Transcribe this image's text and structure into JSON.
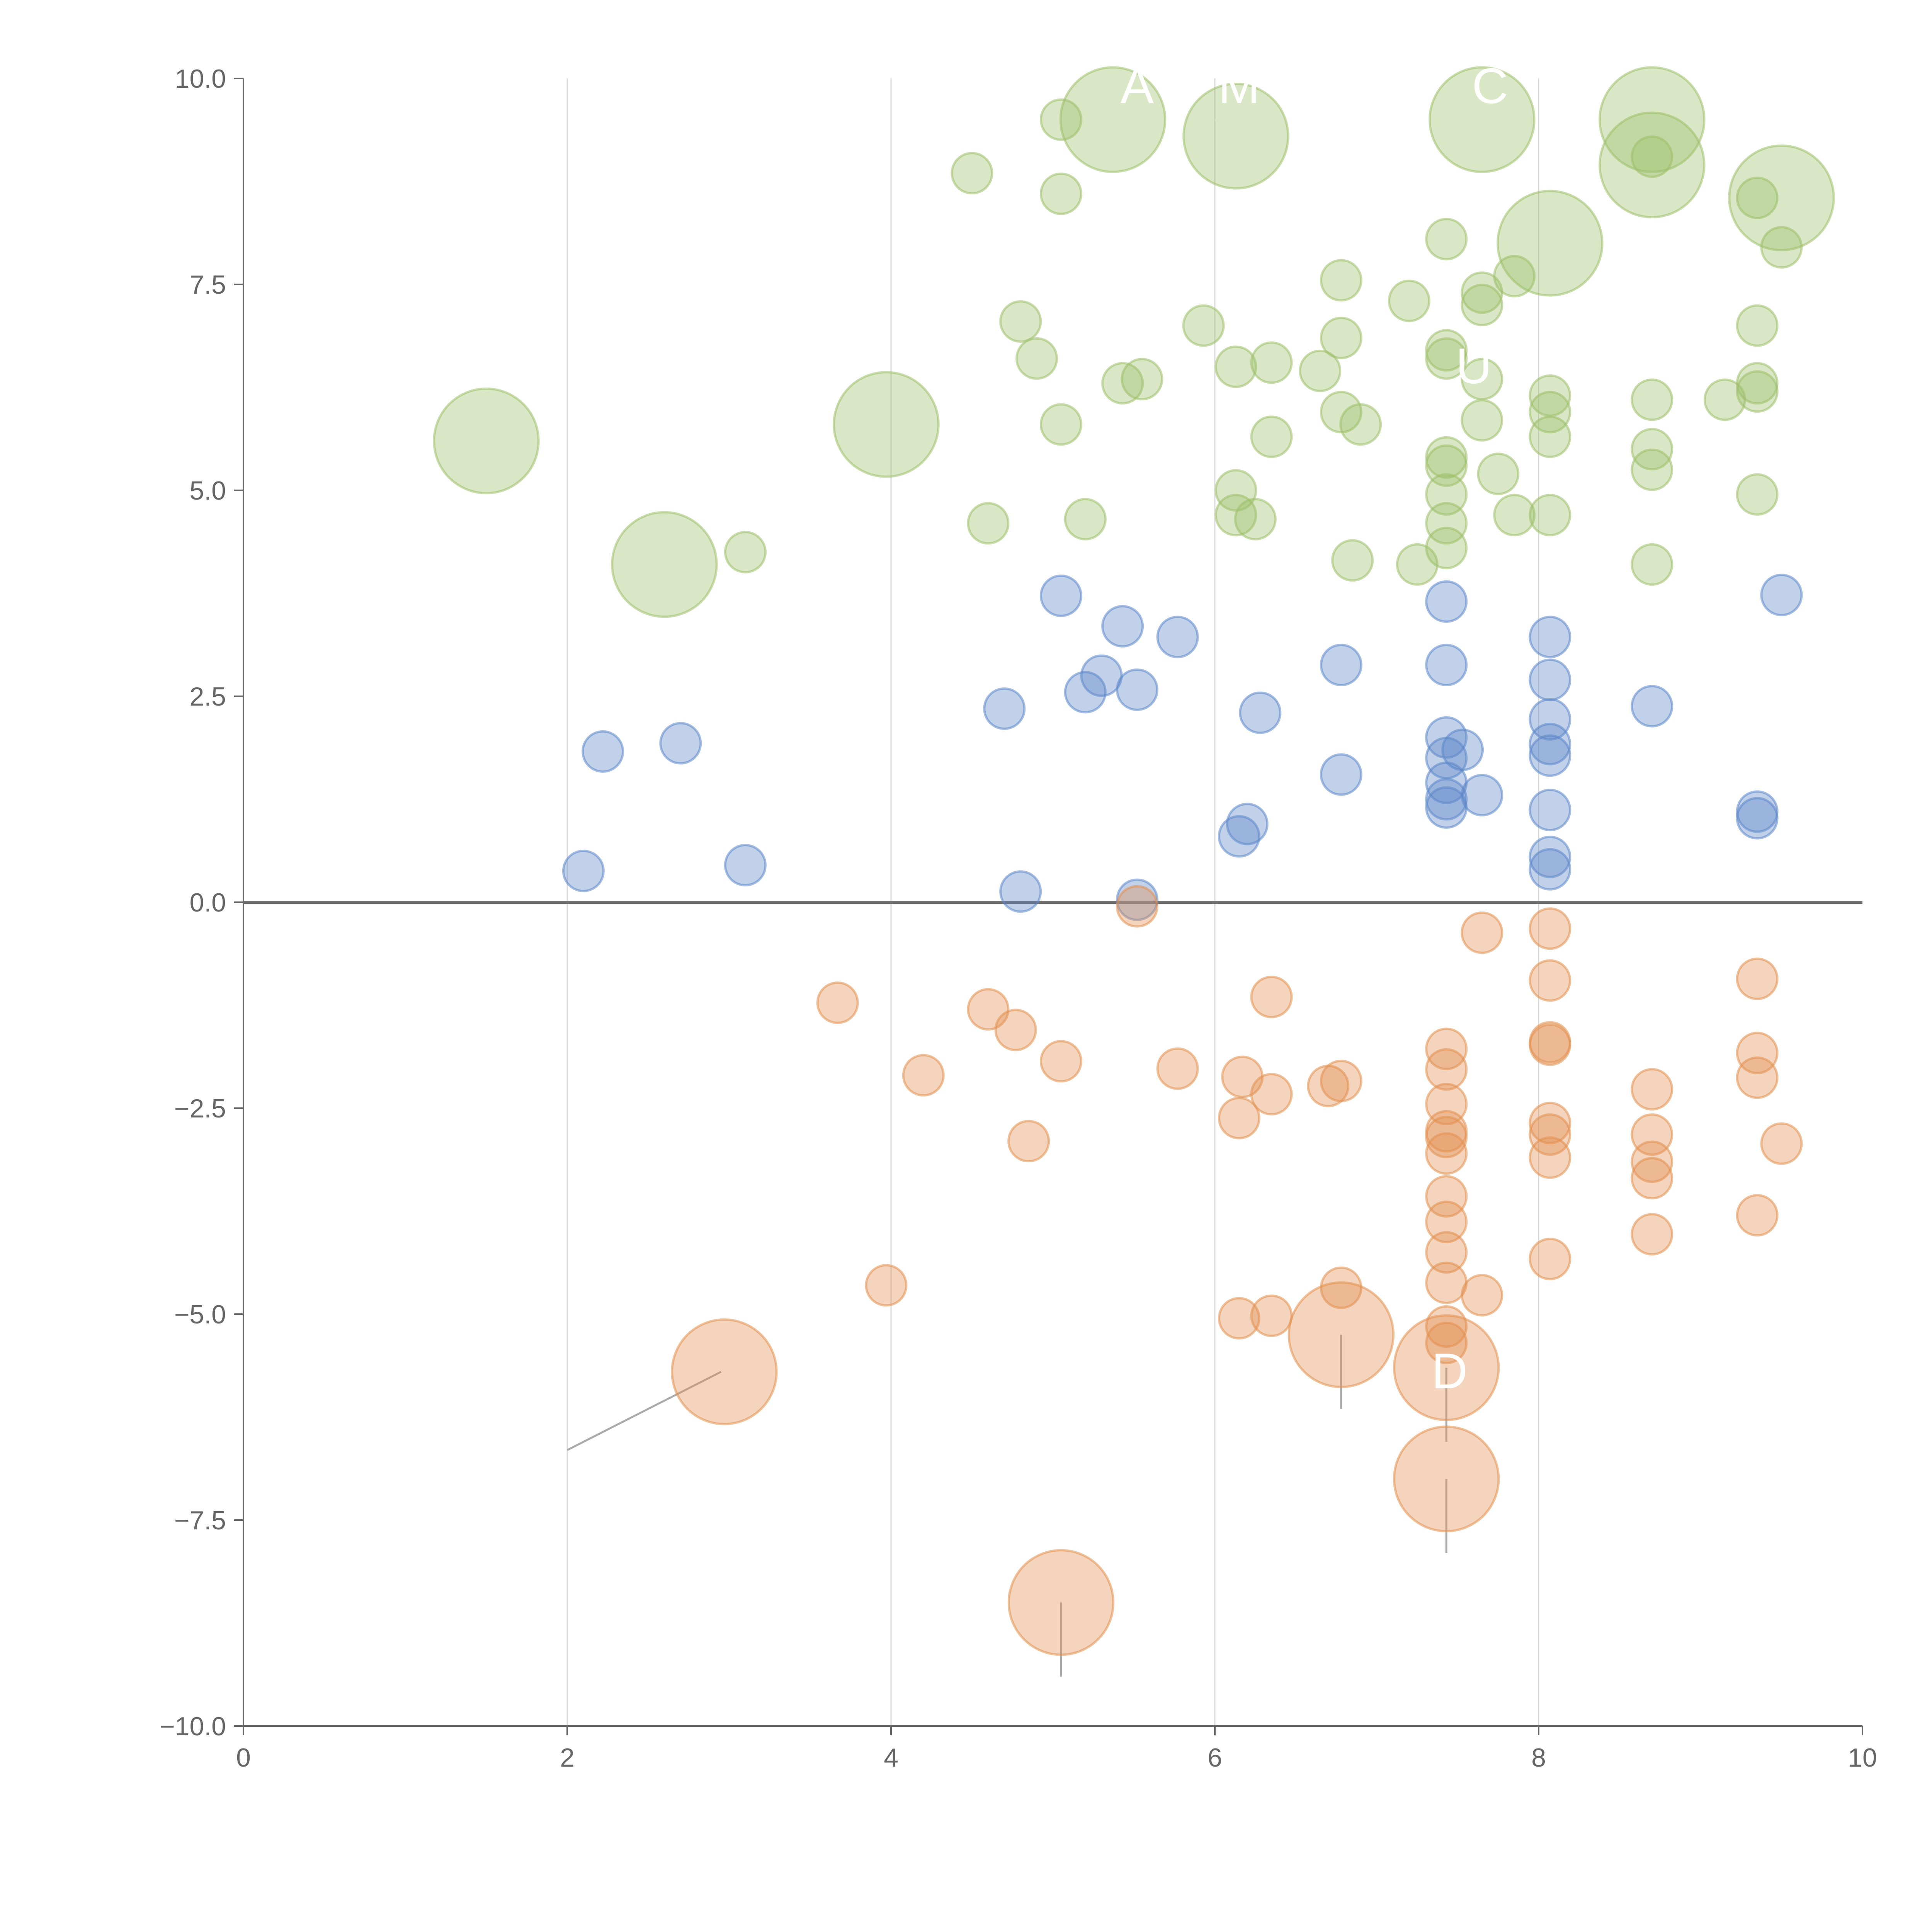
{
  "chart_data": {
    "type": "scatter",
    "variant": "bubble",
    "title": "",
    "xlabel": "",
    "ylabel": "",
    "xlim": [
      0,
      10
    ],
    "ylim": [
      -10,
      10
    ],
    "x_ticks": [
      0,
      2,
      4,
      6,
      8,
      10
    ],
    "x_tick_labels": [
      "0",
      "2",
      "4",
      "6",
      "8",
      "10"
    ],
    "y_ticks": [
      10,
      7.5,
      5,
      2.5,
      0,
      -2.5,
      -5,
      -7.5,
      -10
    ],
    "y_tick_labels": [
      "10.0",
      "7.5",
      "5.0",
      "2.5",
      "0.0",
      "−2.5",
      "−5.0",
      "−7.5",
      "−10.0"
    ],
    "vertical_gridlines_at": [
      2,
      4,
      6,
      8
    ],
    "reference_line_y": 0,
    "colors": {
      "green": "#9cc069",
      "blue": "#5b86c8",
      "orange": "#e18f4e",
      "axis": "#666666",
      "grid": "#d9d9d9",
      "zero_line": "#707070",
      "leader": "#aaaaaa"
    },
    "series": [
      {
        "name": "green",
        "color": "#9cc069",
        "points": [
          [
            1.5,
            5.6,
            2.6
          ],
          [
            2.6,
            4.1,
            2.6
          ],
          [
            3.1,
            4.25,
            1
          ],
          [
            3.97,
            5.8,
            2.6
          ],
          [
            4.5,
            8.85,
            1
          ],
          [
            4.6,
            4.6,
            1
          ],
          [
            4.8,
            7.05,
            1
          ],
          [
            4.9,
            6.6,
            1
          ],
          [
            5.05,
            9.5,
            1
          ],
          [
            5.05,
            8.6,
            1
          ],
          [
            5.05,
            5.8,
            1
          ],
          [
            5.2,
            4.65,
            1
          ],
          [
            5.37,
            9.5,
            2.6
          ],
          [
            5.43,
            6.3,
            1
          ],
          [
            5.55,
            6.35,
            1
          ],
          [
            5.93,
            7.0,
            1
          ],
          [
            6.13,
            9.3,
            2.6
          ],
          [
            6.13,
            6.5,
            1
          ],
          [
            6.13,
            5.0,
            1
          ],
          [
            6.13,
            4.7,
            1
          ],
          [
            6.25,
            4.65,
            1
          ],
          [
            6.35,
            6.55,
            1
          ],
          [
            6.35,
            5.65,
            1
          ],
          [
            6.65,
            6.45,
            1
          ],
          [
            6.78,
            7.55,
            1
          ],
          [
            6.78,
            6.85,
            1
          ],
          [
            6.78,
            5.95,
            1
          ],
          [
            6.9,
            5.8,
            1
          ],
          [
            6.85,
            4.15,
            1
          ],
          [
            7.2,
            7.3,
            1
          ],
          [
            7.25,
            4.1,
            1
          ],
          [
            7.43,
            8.05,
            1
          ],
          [
            7.43,
            6.7,
            1
          ],
          [
            7.43,
            6.6,
            1
          ],
          [
            7.43,
            5.4,
            1
          ],
          [
            7.43,
            5.3,
            1
          ],
          [
            7.43,
            4.95,
            1
          ],
          [
            7.43,
            4.6,
            1
          ],
          [
            7.43,
            4.3,
            1
          ],
          [
            7.65,
            9.5,
            2.6
          ],
          [
            7.65,
            7.4,
            1
          ],
          [
            7.65,
            7.25,
            1
          ],
          [
            7.65,
            6.35,
            1
          ],
          [
            7.65,
            5.85,
            1
          ],
          [
            7.75,
            5.2,
            1
          ],
          [
            7.85,
            7.6,
            1
          ],
          [
            7.85,
            4.7,
            1
          ],
          [
            8.07,
            8.0,
            2.6
          ],
          [
            8.07,
            6.15,
            1
          ],
          [
            8.07,
            5.95,
            1
          ],
          [
            8.07,
            5.65,
            1
          ],
          [
            8.07,
            4.7,
            1
          ],
          [
            8.7,
            9.5,
            2.6
          ],
          [
            8.7,
            8.95,
            2.6
          ],
          [
            8.7,
            9.05,
            1
          ],
          [
            8.7,
            6.1,
            1
          ],
          [
            8.7,
            5.5,
            1
          ],
          [
            8.7,
            5.25,
            1
          ],
          [
            8.7,
            4.1,
            1
          ],
          [
            9.15,
            6.1,
            1
          ],
          [
            9.35,
            8.55,
            1
          ],
          [
            9.35,
            7.0,
            1
          ],
          [
            9.35,
            6.3,
            1
          ],
          [
            9.35,
            6.2,
            1
          ],
          [
            9.35,
            4.95,
            1
          ],
          [
            9.5,
            8.55,
            2.6
          ],
          [
            9.5,
            7.95,
            1
          ]
        ]
      },
      {
        "name": "blue",
        "color": "#5b86c8",
        "points": [
          [
            2.1,
            0.38,
            1
          ],
          [
            2.22,
            1.83,
            1
          ],
          [
            2.7,
            1.93,
            1
          ],
          [
            3.1,
            0.45,
            1
          ],
          [
            4.7,
            2.35,
            1
          ],
          [
            4.8,
            0.13,
            1
          ],
          [
            5.05,
            3.72,
            1
          ],
          [
            5.2,
            2.55,
            1
          ],
          [
            5.3,
            2.75,
            1
          ],
          [
            5.43,
            3.35,
            1
          ],
          [
            5.52,
            2.58,
            1
          ],
          [
            5.52,
            0.03,
            1
          ],
          [
            5.77,
            3.22,
            1
          ],
          [
            6.15,
            0.8,
            1
          ],
          [
            6.2,
            0.95,
            1
          ],
          [
            6.28,
            2.3,
            1
          ],
          [
            6.78,
            2.88,
            1
          ],
          [
            6.78,
            1.55,
            1
          ],
          [
            7.43,
            3.65,
            1
          ],
          [
            7.43,
            2.88,
            1
          ],
          [
            7.43,
            2.0,
            1
          ],
          [
            7.43,
            1.75,
            1
          ],
          [
            7.43,
            1.45,
            1
          ],
          [
            7.43,
            1.25,
            1
          ],
          [
            7.43,
            1.15,
            1
          ],
          [
            7.53,
            1.85,
            1
          ],
          [
            7.65,
            1.3,
            1
          ],
          [
            8.07,
            3.22,
            1
          ],
          [
            8.07,
            2.7,
            1
          ],
          [
            8.07,
            2.22,
            1
          ],
          [
            8.07,
            1.92,
            1
          ],
          [
            8.07,
            1.78,
            1
          ],
          [
            8.07,
            1.12,
            1
          ],
          [
            8.07,
            0.55,
            1
          ],
          [
            8.07,
            0.4,
            1
          ],
          [
            8.7,
            2.38,
            1
          ],
          [
            9.35,
            1.1,
            1
          ],
          [
            9.35,
            1.02,
            1
          ],
          [
            9.5,
            3.73,
            1
          ]
        ]
      },
      {
        "name": "orange",
        "color": "#e18f4e",
        "points": [
          [
            2.97,
            -5.7,
            2.6
          ],
          [
            3.67,
            -1.22,
            1
          ],
          [
            3.97,
            -4.65,
            1
          ],
          [
            4.2,
            -2.1,
            1
          ],
          [
            4.6,
            -1.3,
            1
          ],
          [
            4.77,
            -1.55,
            1
          ],
          [
            4.85,
            -2.9,
            1
          ],
          [
            5.05,
            -1.93,
            1
          ],
          [
            5.05,
            -8.5,
            2.6
          ],
          [
            5.52,
            -0.05,
            1
          ],
          [
            5.77,
            -2.02,
            1
          ],
          [
            6.15,
            -2.62,
            1
          ],
          [
            6.15,
            -5.05,
            1
          ],
          [
            6.17,
            -2.12,
            1
          ],
          [
            6.35,
            -1.15,
            1
          ],
          [
            6.35,
            -2.33,
            1
          ],
          [
            6.35,
            -5.02,
            1
          ],
          [
            6.7,
            -2.23,
            1
          ],
          [
            6.78,
            -2.17,
            1
          ],
          [
            6.78,
            -4.68,
            1
          ],
          [
            6.78,
            -5.25,
            2.6
          ],
          [
            7.43,
            -1.78,
            1
          ],
          [
            7.43,
            -2.03,
            1
          ],
          [
            7.43,
            -2.45,
            1
          ],
          [
            7.43,
            -2.78,
            1
          ],
          [
            7.43,
            -2.85,
            1
          ],
          [
            7.43,
            -3.05,
            1
          ],
          [
            7.43,
            -3.57,
            1
          ],
          [
            7.43,
            -3.88,
            1
          ],
          [
            7.43,
            -4.25,
            1
          ],
          [
            7.43,
            -4.62,
            1
          ],
          [
            7.43,
            -5.15,
            1
          ],
          [
            7.43,
            -5.35,
            1
          ],
          [
            7.43,
            -5.65,
            2.6
          ],
          [
            7.43,
            -7.0,
            2.6
          ],
          [
            7.65,
            -0.37,
            1
          ],
          [
            7.65,
            -4.77,
            1
          ],
          [
            8.07,
            -0.32,
            1
          ],
          [
            8.07,
            -0.95,
            1
          ],
          [
            8.07,
            -1.7,
            1
          ],
          [
            8.07,
            -1.73,
            1
          ],
          [
            8.07,
            -2.68,
            1
          ],
          [
            8.07,
            -2.82,
            1
          ],
          [
            8.07,
            -3.1,
            1
          ],
          [
            8.07,
            -4.33,
            1
          ],
          [
            8.7,
            -2.27,
            1
          ],
          [
            8.7,
            -2.82,
            1
          ],
          [
            8.7,
            -3.15,
            1
          ],
          [
            8.7,
            -3.35,
            1
          ],
          [
            8.7,
            -4.03,
            1
          ],
          [
            9.35,
            -0.93,
            1
          ],
          [
            9.35,
            -1.83,
            1
          ],
          [
            9.35,
            -2.13,
            1
          ],
          [
            9.35,
            -3.8,
            1
          ],
          [
            9.5,
            -2.93,
            1
          ]
        ]
      }
    ],
    "callout_labels": [
      {
        "text": "A",
        "x": 5.52,
        "y": 9.7
      },
      {
        "text": "M",
        "x": 6.15,
        "y": 9.7
      },
      {
        "text": "C",
        "x": 7.7,
        "y": 9.7
      },
      {
        "text": "U",
        "x": 7.6,
        "y": 6.3
      },
      {
        "text": "D",
        "x": 7.45,
        "y": -5.9
      }
    ],
    "leader_lines": [
      {
        "tone": "gray",
        "from": [
          2.0,
          -6.65
        ],
        "to": [
          2.95,
          -5.7
        ]
      },
      {
        "tone": "gray",
        "from": [
          5.05,
          -9.4
        ],
        "to": [
          5.05,
          -8.5
        ]
      },
      {
        "tone": "gray",
        "from": [
          6.78,
          -6.15
        ],
        "to": [
          6.78,
          -5.25
        ]
      },
      {
        "tone": "gray",
        "from": [
          7.43,
          -6.55
        ],
        "to": [
          7.43,
          -5.65
        ]
      },
      {
        "tone": "gray",
        "from": [
          7.43,
          -7.9
        ],
        "to": [
          7.43,
          -7.0
        ]
      },
      {
        "tone": "white",
        "from": [
          2.6,
          4.1
        ],
        "to": [
          2.78,
          4.02
        ]
      },
      {
        "tone": "white",
        "from": [
          1.5,
          5.6
        ],
        "to": [
          1.6,
          5.78
        ]
      },
      {
        "tone": "white",
        "from": [
          5.0,
          9.6
        ],
        "to": [
          5.35,
          9.5
        ]
      },
      {
        "tone": "white",
        "from": [
          6.0,
          9.5
        ],
        "to": [
          6.13,
          9.35
        ]
      },
      {
        "tone": "white",
        "from": [
          8.07,
          7.7
        ],
        "to": [
          8.07,
          8.0
        ]
      },
      {
        "tone": "white",
        "from": [
          8.7,
          9.05
        ],
        "to": [
          8.85,
          9.15
        ]
      },
      {
        "tone": "white",
        "from": [
          8.7,
          9.5
        ],
        "to": [
          8.9,
          9.55
        ]
      },
      {
        "tone": "white",
        "from": [
          9.45,
          7.8
        ],
        "to": [
          9.5,
          8.45
        ]
      }
    ]
  }
}
